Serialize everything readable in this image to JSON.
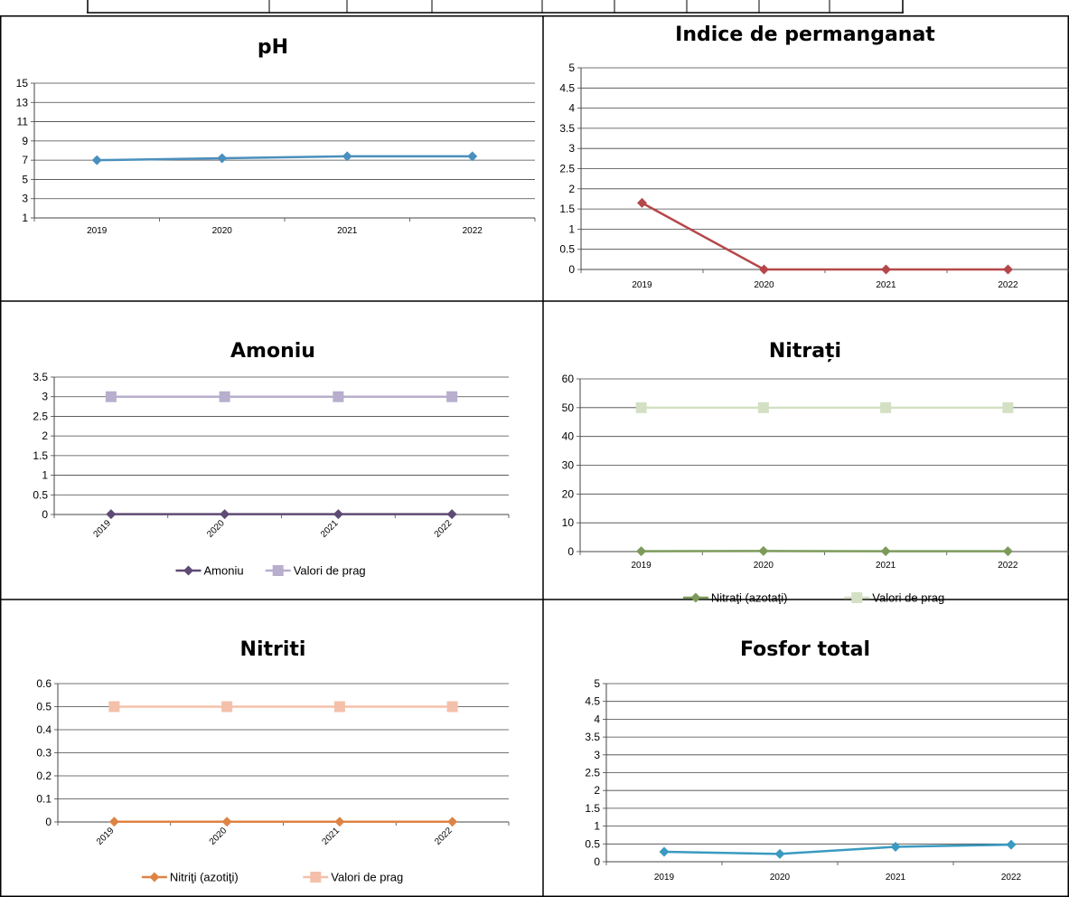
{
  "colors": {
    "ph": "#4a8fbd",
    "permanganat": "#b5474a",
    "amoniu": "#5e4a74",
    "amoniu_prag": "#b8aecd",
    "nitrati": "#7d9a5a",
    "nitrati_prag": "#d3e0c4",
    "nitriti": "#dd8445",
    "nitriti_prag": "#f4c0aa",
    "fosfor": "#3a9ac0"
  },
  "chart_data": [
    {
      "id": "ph",
      "type": "line",
      "title": "pH",
      "categories": [
        "2019",
        "2020",
        "2021",
        "2022"
      ],
      "ylim": [
        1,
        15
      ],
      "yticks": [
        "1",
        "3",
        "5",
        "7",
        "9",
        "11",
        "13",
        "15"
      ],
      "grid": true,
      "legend": "none",
      "series": [
        {
          "values": [
            7.0,
            7.2,
            7.4,
            7.4
          ],
          "color": "ph"
        }
      ]
    },
    {
      "id": "permanganat",
      "type": "line",
      "title": "Indice de permanganat",
      "categories": [
        "2019",
        "2020",
        "2021",
        "2022"
      ],
      "ylim": [
        0,
        5
      ],
      "yticks": [
        "0",
        "0.5",
        "1",
        "1.5",
        "2",
        "2.5",
        "3",
        "3.5",
        "4",
        "4.5",
        "5"
      ],
      "grid": true,
      "legend": "none",
      "series": [
        {
          "values": [
            1.65,
            0,
            0,
            0
          ],
          "color": "permanganat"
        }
      ]
    },
    {
      "id": "amoniu",
      "type": "line",
      "title": "Amoniu",
      "categories": [
        "2019",
        "2020",
        "2021",
        "2022"
      ],
      "ylim": [
        0,
        3.5
      ],
      "yticks": [
        "0",
        "0.5",
        "1",
        "1.5",
        "2",
        "2.5",
        "3",
        "3.5"
      ],
      "grid": true,
      "legend": "bottom",
      "series": [
        {
          "name": "Amoniu",
          "values": [
            0.01,
            0.01,
            0.01,
            0.01
          ],
          "color": "amoniu"
        },
        {
          "name": "Valori de prag",
          "values": [
            3,
            3,
            3,
            3
          ],
          "color": "amoniu_prag"
        }
      ]
    },
    {
      "id": "nitrati",
      "type": "line",
      "title": "Nitrați",
      "categories": [
        "2019",
        "2020",
        "2021",
        "2022"
      ],
      "ylim": [
        0,
        60
      ],
      "yticks": [
        "0",
        "10",
        "20",
        "30",
        "40",
        "50",
        "60"
      ],
      "grid": true,
      "legend": "bottom",
      "series": [
        {
          "name": "Nitraţi (azotaţi)",
          "values": [
            0.1,
            0.2,
            0.1,
            0.1
          ],
          "color": "nitrati"
        },
        {
          "name": "Valori de prag",
          "values": [
            50,
            50,
            50,
            50
          ],
          "color": "nitrati_prag"
        }
      ]
    },
    {
      "id": "nitriti",
      "type": "line",
      "title": "Nitriti",
      "categories": [
        "2019",
        "2020",
        "2021",
        "2022"
      ],
      "ylim": [
        0,
        0.6
      ],
      "yticks": [
        "0",
        "0.1",
        "0.2",
        "0.3",
        "0.4",
        "0.5",
        "0.6"
      ],
      "grid": true,
      "legend": "bottom",
      "series": [
        {
          "name": "Nitriţi (azotiţi)",
          "values": [
            0.001,
            0.001,
            0.001,
            0.001
          ],
          "color": "nitriti"
        },
        {
          "name": "Valori de prag",
          "values": [
            0.5,
            0.5,
            0.5,
            0.5
          ],
          "color": "nitriti_prag"
        }
      ]
    },
    {
      "id": "fosfor",
      "type": "line",
      "title": "Fosfor total",
      "categories": [
        "2019",
        "2020",
        "2021",
        "2022"
      ],
      "ylim": [
        0,
        5
      ],
      "yticks": [
        "0",
        "0.5",
        "1",
        "1.5",
        "2",
        "2.5",
        "3",
        "3.5",
        "4",
        "4.5",
        "5"
      ],
      "grid": true,
      "legend": "none",
      "series": [
        {
          "values": [
            0.28,
            0.22,
            0.42,
            0.48
          ],
          "color": "fosfor"
        }
      ]
    }
  ]
}
